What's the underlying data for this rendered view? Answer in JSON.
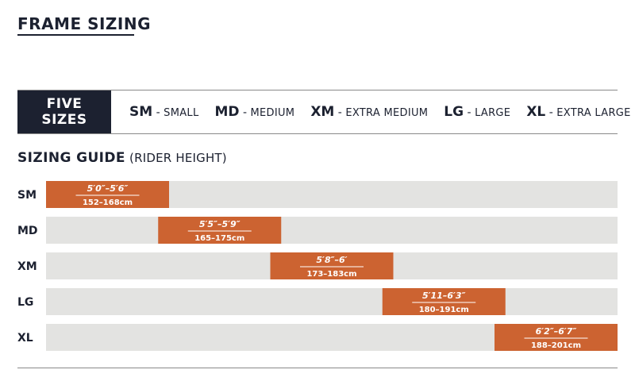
{
  "header": {
    "title": "FRAME SIZING"
  },
  "sizes_box": {
    "line1": "FIVE",
    "line2": "SIZES"
  },
  "size_legend": [
    {
      "code": "SM",
      "sep": "-",
      "name": "SMALL"
    },
    {
      "code": "MD",
      "sep": "-",
      "name": "MEDIUM"
    },
    {
      "code": "XM",
      "sep": "-",
      "name": "EXTRA MEDIUM"
    },
    {
      "code": "LG",
      "sep": "-",
      "name": "LARGE"
    },
    {
      "code": "XL",
      "sep": "-",
      "name": "EXTRA LARGE"
    }
  ],
  "guide": {
    "title": "SIZING GUIDE",
    "subtitle": "(RIDER HEIGHT)"
  },
  "colors": {
    "navy": "#1c2130",
    "bar": "#cc6331",
    "track": "#e3e3e1"
  },
  "chart_data": {
    "type": "range-bar",
    "title": "SIZING GUIDE",
    "subtitle": "(RIDER HEIGHT)",
    "categories": [
      "SM",
      "MD",
      "XM",
      "LG",
      "XL"
    ],
    "units": "cm",
    "xlim": [
      152,
      201
    ],
    "grid": false,
    "ranges": [
      {
        "label": "SM",
        "min": 152,
        "max": 168,
        "imperial": "5′0″–5′6″",
        "metric": "152–168cm"
      },
      {
        "label": "MD",
        "min": 165,
        "max": 175,
        "imperial": "5′5″–5′9″",
        "metric": "165–175cm"
      },
      {
        "label": "XM",
        "min": 173,
        "max": 183,
        "imperial": "5′8″–6′",
        "metric": "173–183cm"
      },
      {
        "label": "LG",
        "min": 180,
        "max": 191,
        "imperial": "5′11–6′3″",
        "metric": "180–191cm"
      },
      {
        "label": "XL",
        "min": 188,
        "max": 201,
        "imperial": "6′2″–6′7″",
        "metric": "188–201cm"
      }
    ]
  }
}
